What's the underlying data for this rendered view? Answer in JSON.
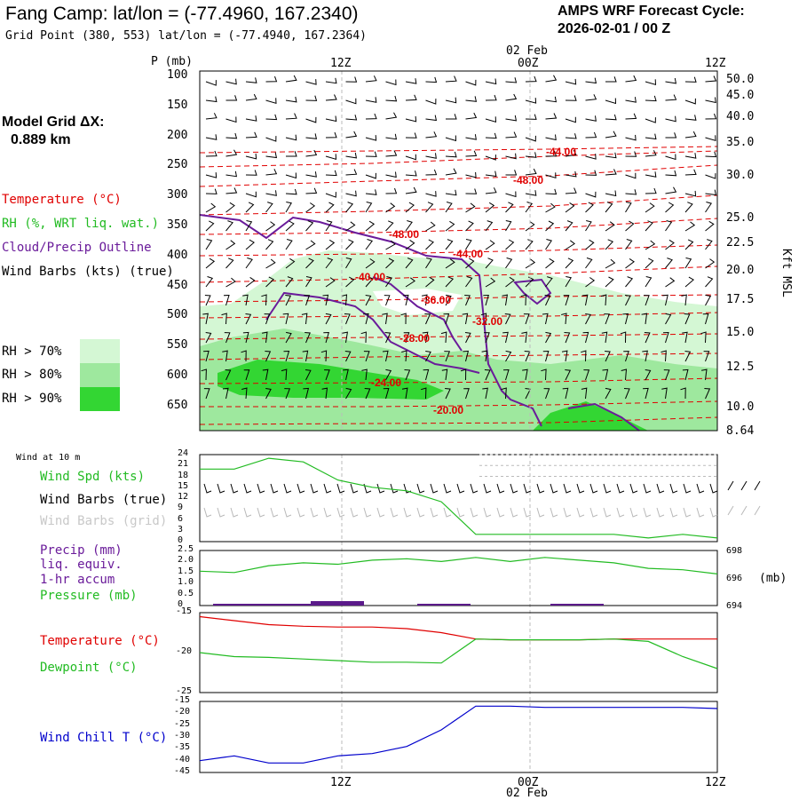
{
  "header": {
    "title": "Fang Camp:  lat/lon = (-77.4960, 167.2340)",
    "subtitle": "Grid Point (380, 553) lat/lon = (-77.4940, 167.2364)",
    "forecast_line1": "AMPS WRF Forecast Cycle:",
    "forecast_line2": "2026-02-01 / 00  Z",
    "grid_label": "Model Grid ΔX:",
    "grid_value": "0.889 km"
  },
  "colors": {
    "temperature": "#ff0000",
    "rh": "#22bb22",
    "cloud": "#6a1b9a",
    "wind_chill": "#0000cc",
    "rh70": "#d4f7d4",
    "rh80": "#9ee89e",
    "rh90": "#33d633"
  },
  "time_axis": {
    "ticks": [
      "12Z",
      "00Z",
      "12Z"
    ],
    "date_label": "02 Feb"
  },
  "chart_data": [
    {
      "type": "heatmap",
      "name": "time-height cross section",
      "legend": {
        "temperature": "Temperature (°C)",
        "rh": "RH (%, WRT liq. wat.)",
        "cloud": "Cloud/Precip Outline",
        "wind": "Wind Barbs (kts) (true)",
        "rh70": "RH > 70%",
        "rh80": "RH > 80%",
        "rh90": "RH > 90%"
      },
      "ylabel": "P (mb)",
      "y_ticks": [
        "100",
        "150",
        "200",
        "250",
        "300",
        "350",
        "400",
        "450",
        "500",
        "550",
        "600",
        "650"
      ],
      "right_ylabel": "Kft MSL",
      "right_ticks": [
        "50.0",
        "45.0",
        "40.0",
        "35.0",
        "30.0",
        "25.0",
        "22.5",
        "20.0",
        "17.5",
        "15.0",
        "12.5",
        "10.0",
        "8.64"
      ],
      "temperature_labels": [
        "-44.00",
        "-48.00",
        "-48.00",
        "-44.00",
        "-40.00",
        "-36.00",
        "-32.00",
        "-28.00",
        "-24.00",
        "-20.00"
      ]
    },
    {
      "type": "line",
      "name": "10 m wind",
      "panel_label": "Wind at 10 m",
      "legend": [
        "Wind Spd (kts)",
        "Wind Barbs (true)",
        "Wind Barbs (grid)"
      ],
      "y_ticks": [
        "24",
        "21",
        "18",
        "15",
        "12",
        "9",
        "6",
        "3",
        "0"
      ],
      "ylim": [
        0,
        24
      ],
      "series": [
        {
          "name": "Wind Spd (kts)",
          "values": [
            20,
            20,
            23,
            22,
            17,
            15,
            14,
            11,
            2,
            2,
            2,
            2,
            2,
            1,
            2,
            1
          ]
        }
      ]
    },
    {
      "type": "line",
      "name": "precip and pressure",
      "legend": [
        "Precip (mm)",
        "liq. equiv.",
        "1-hr accum",
        "Pressure (mb)"
      ],
      "y_ticks": [
        "2.5",
        "2.0",
        "1.5",
        "1.0",
        "0.5",
        "0"
      ],
      "right_ticks": [
        "698",
        "696",
        "694"
      ],
      "right_unit": "(mb)",
      "ylim": [
        0,
        2.5
      ],
      "series": [
        {
          "name": "Pressure (mb)",
          "values": [
            696.5,
            696.4,
            696.9,
            697.1,
            697.0,
            697.3,
            697.4,
            697.2,
            697.5,
            697.2,
            697.5,
            697.3,
            697.1,
            696.7,
            696.6,
            696.3
          ]
        }
      ]
    },
    {
      "type": "line",
      "name": "temperature and dewpoint",
      "legend": [
        "Temperature (°C)",
        "Dewpoint (°C)"
      ],
      "y_ticks": [
        "-15",
        "-20",
        "-25"
      ],
      "ylim": [
        -25,
        -15
      ],
      "series": [
        {
          "name": "Temperature (°C)",
          "values": [
            -15.5,
            -16,
            -16.5,
            -16.7,
            -16.8,
            -16.8,
            -17,
            -17.5,
            -18.3,
            -18.4,
            -18.4,
            -18.4,
            -18.3,
            -18.3,
            -18.3,
            -18.3
          ]
        },
        {
          "name": "Dewpoint (°C)",
          "values": [
            -20,
            -20.5,
            -20.6,
            -20.8,
            -21,
            -21.2,
            -21.2,
            -21.3,
            -18.3,
            -18.4,
            -18.4,
            -18.4,
            -18.3,
            -18.6,
            -20.5,
            -22
          ]
        }
      ]
    },
    {
      "type": "line",
      "name": "wind chill",
      "legend": [
        "Wind Chill T (°C)"
      ],
      "y_ticks": [
        "-15",
        "-20",
        "-25",
        "-30",
        "-35",
        "-40",
        "-45"
      ],
      "ylim": [
        -45,
        -15
      ],
      "series": [
        {
          "name": "Wind Chill T (°C)",
          "values": [
            -40,
            -38,
            -41,
            -41,
            -38,
            -37,
            -34,
            -27,
            -17,
            -17,
            -17.5,
            -17.5,
            -17.5,
            -17.5,
            -17.5,
            -18
          ]
        }
      ]
    }
  ]
}
